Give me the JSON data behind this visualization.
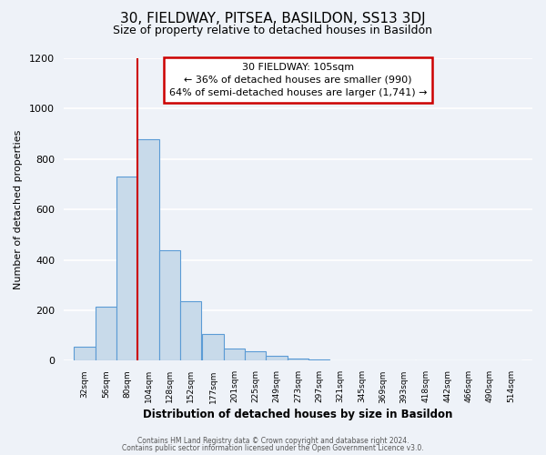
{
  "title": "30, FIELDWAY, PITSEA, BASILDON, SS13 3DJ",
  "subtitle": "Size of property relative to detached houses in Basildon",
  "xlabel": "Distribution of detached houses by size in Basildon",
  "ylabel": "Number of detached properties",
  "bin_labels": [
    "32sqm",
    "56sqm",
    "80sqm",
    "104sqm",
    "128sqm",
    "152sqm",
    "177sqm",
    "201sqm",
    "225sqm",
    "249sqm",
    "273sqm",
    "297sqm",
    "321sqm",
    "345sqm",
    "369sqm",
    "393sqm",
    "418sqm",
    "442sqm",
    "466sqm",
    "490sqm",
    "514sqm"
  ],
  "bar_values": [
    55,
    215,
    730,
    880,
    440,
    235,
    105,
    48,
    38,
    20,
    10,
    5,
    0,
    0,
    0,
    0,
    0,
    0,
    0,
    0,
    0
  ],
  "bar_color": "#c8daea",
  "bar_edge_color": "#5b9bd5",
  "vline_color": "#cc0000",
  "ylim": [
    0,
    1200
  ],
  "yticks": [
    0,
    200,
    400,
    600,
    800,
    1000,
    1200
  ],
  "annotation_line1": "30 FIELDWAY: 105sqm",
  "annotation_line2": "← 36% of detached houses are smaller (990)",
  "annotation_line3": "64% of semi-detached houses are larger (1,741) →",
  "annotation_box_color": "#ffffff",
  "annotation_box_edge": "#cc0000",
  "footnote1": "Contains HM Land Registry data © Crown copyright and database right 2024.",
  "footnote2": "Contains public sector information licensed under the Open Government Licence v3.0.",
  "background_color": "#eef2f8",
  "plot_bg_color": "#eef2f8",
  "grid_color": "#ffffff",
  "title_fontsize": 11,
  "subtitle_fontsize": 9
}
